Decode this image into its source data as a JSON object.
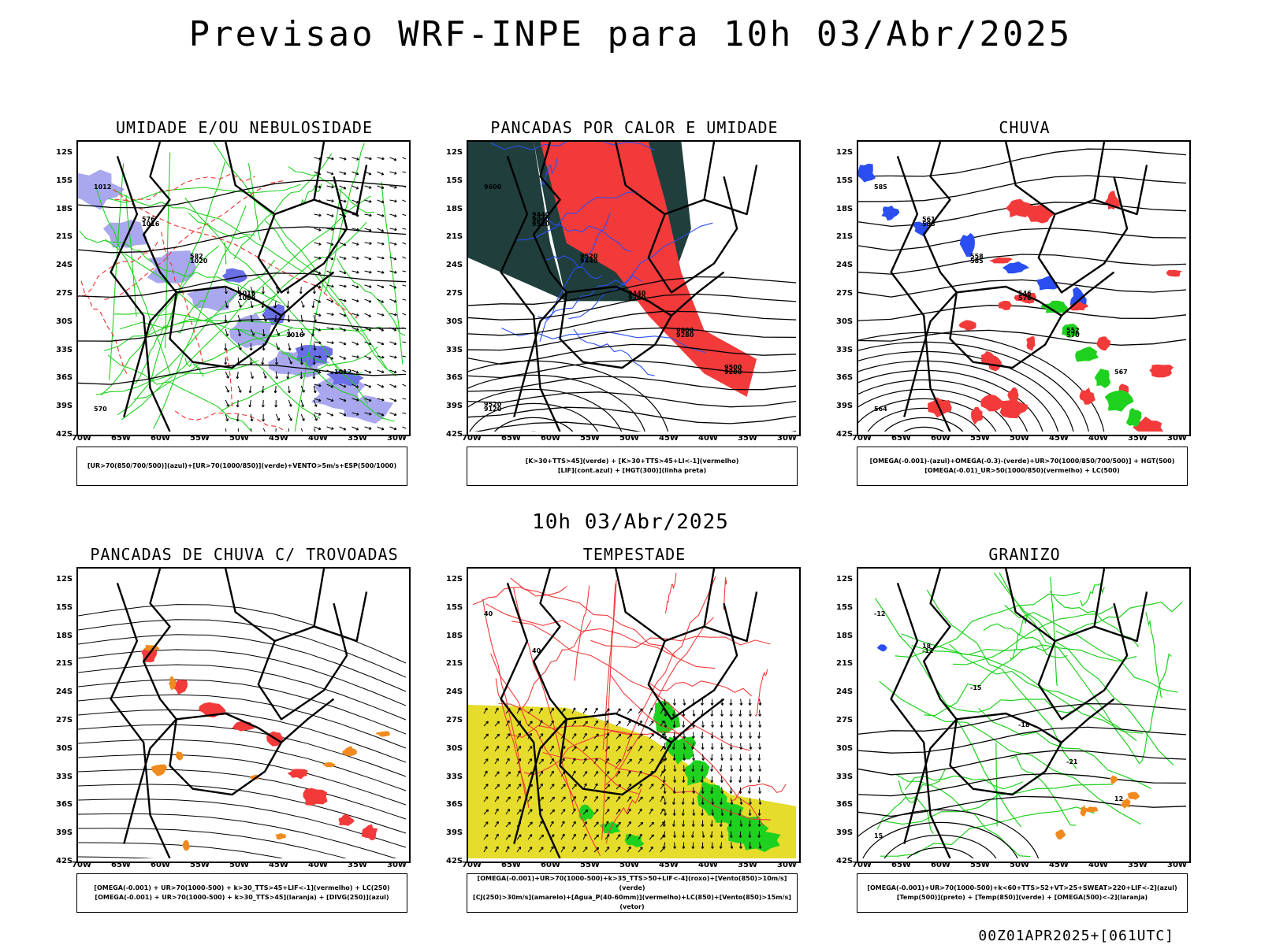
{
  "title": "Previsao WRF-INPE  para 10h 03/Abr/2025",
  "middle_date": "10h 03/Abr/2025",
  "footer": "00Z01APR2025+[061UTC]",
  "colors": {
    "red": "#f23a3a",
    "green": "#1fd11f",
    "blue": "#2a4ef0",
    "lightblue": "#a9a8ef",
    "darkgreen": "#1f3e3c",
    "yellow": "#e5dc2b",
    "orange": "#f08a1e",
    "purple": "#7a3fd0"
  },
  "chart_data": [
    {
      "type": "map",
      "title": "UMIDADE E/OU NEBULOSIDADE",
      "legend": [
        "[UR>70(850/700/500)](azul)+[UR>70(1000/850)](verde)+VENTO>5m/s+ESP(500/1000)"
      ],
      "y_ticks": [
        "12S",
        "15S",
        "18S",
        "21S",
        "24S",
        "27S",
        "30S",
        "33S",
        "36S",
        "39S",
        "42S"
      ],
      "x_ticks": [
        "70W",
        "65W",
        "60W",
        "55W",
        "50W",
        "45W",
        "40W",
        "35W",
        "30W"
      ],
      "contour_labels": [
        "1012",
        "1016",
        "1020",
        "1008",
        "1016",
        "1012",
        "570",
        "576",
        "582",
        "1016"
      ]
    },
    {
      "type": "map",
      "title": "PANCADAS POR CALOR E UMIDADE",
      "legend": [
        "[K>30+TTS>45](verde) + [K>30+TTS>45+LI<-1](vermelho)",
        "[LIF](cont.azul) + [HGT(300)](linha preta)"
      ],
      "y_ticks": [
        "12S",
        "15S",
        "18S",
        "21S",
        "24S",
        "27S",
        "30S",
        "33S",
        "36S",
        "39S",
        "42S"
      ],
      "x_ticks": [
        "70W",
        "65W",
        "60W",
        "55W",
        "50W",
        "45W",
        "40W",
        "35W",
        "30W"
      ],
      "contour_labels": [
        "9600",
        "9520",
        "9440",
        "9360",
        "9280",
        "9200",
        "9120",
        "9040",
        "9520",
        "9440",
        "9600",
        "9500",
        "9520",
        "9440"
      ]
    },
    {
      "type": "map",
      "title": "CHUVA",
      "legend": [
        "[OMEGA(-0.001)-(azul)+OMEGA(-0.3)-(verde)+UR>70(1000/850/700/500)] + HGT(500)",
        "[OMEGA(-0.01)_UR>50(1000/850)(vermelho) + LC(500)"
      ],
      "y_ticks": [
        "12S",
        "15S",
        "18S",
        "21S",
        "24S",
        "27S",
        "30S",
        "33S",
        "36S",
        "39S",
        "42S"
      ],
      "x_ticks": [
        "70W",
        "65W",
        "60W",
        "55W",
        "50W",
        "45W",
        "40W",
        "35W",
        "30W"
      ],
      "contour_labels": [
        "585",
        "585",
        "585",
        "576",
        "570",
        "567",
        "564",
        "561",
        "558",
        "546",
        "552"
      ]
    },
    {
      "type": "map",
      "title": "PANCADAS DE CHUVA C/ TROVOADAS",
      "legend": [
        "[OMEGA(-0.001) + UR>70(1000-500) + k>30_TTS>45+LIF<-1](vermelho) + LC(250)",
        "[OMEGA(-0.001) + UR>70(1000-500) + k>30_TTS>45](laranja) + [DIVG(250)](azul)"
      ],
      "y_ticks": [
        "12S",
        "15S",
        "18S",
        "21S",
        "24S",
        "27S",
        "30S",
        "33S",
        "36S",
        "39S",
        "42S"
      ],
      "x_ticks": [
        "70W",
        "65W",
        "60W",
        "55W",
        "50W",
        "45W",
        "40W",
        "35W",
        "30W"
      ],
      "contour_labels": []
    },
    {
      "type": "map",
      "title": "TEMPESTADE",
      "legend": [
        "[OMEGA(-0.001)+UR>70(1000-500)+k>35_TTS>50+LIF<-4](roxo)+[Vento(850)>10m/s](verde)",
        "[CJ(250)>30m/s](amarelo)+[Agua_P(40-60mm)](vermelho)+LC(850)+[Vento(850)>15m/s](vetor)"
      ],
      "y_ticks": [
        "12S",
        "15S",
        "18S",
        "21S",
        "24S",
        "27S",
        "30S",
        "33S",
        "36S",
        "39S",
        "42S"
      ],
      "x_ticks": [
        "70W",
        "65W",
        "60W",
        "55W",
        "50W",
        "45W",
        "40W",
        "35W",
        "30W"
      ],
      "contour_labels": [
        "40",
        "40"
      ]
    },
    {
      "type": "map",
      "title": "GRANIZO",
      "legend": [
        "[OMEGA(-0.001)+UR>70(1000-500)+k<60+TTS>52+VT>25+SWEAT>220+LIF<-2](azul)",
        "[Temp(500)](preto) + [Temp(850)](verde) + [OMEGA(500)<-2](laranja)"
      ],
      "y_ticks": [
        "12S",
        "15S",
        "18S",
        "21S",
        "24S",
        "27S",
        "30S",
        "33S",
        "36S",
        "39S",
        "42S"
      ],
      "x_ticks": [
        "70W",
        "65W",
        "60W",
        "55W",
        "50W",
        "45W",
        "40W",
        "35W",
        "30W"
      ],
      "contour_labels": [
        "-12",
        "-12",
        "-15",
        "-18",
        "-21",
        "12",
        "15",
        "18"
      ]
    }
  ]
}
